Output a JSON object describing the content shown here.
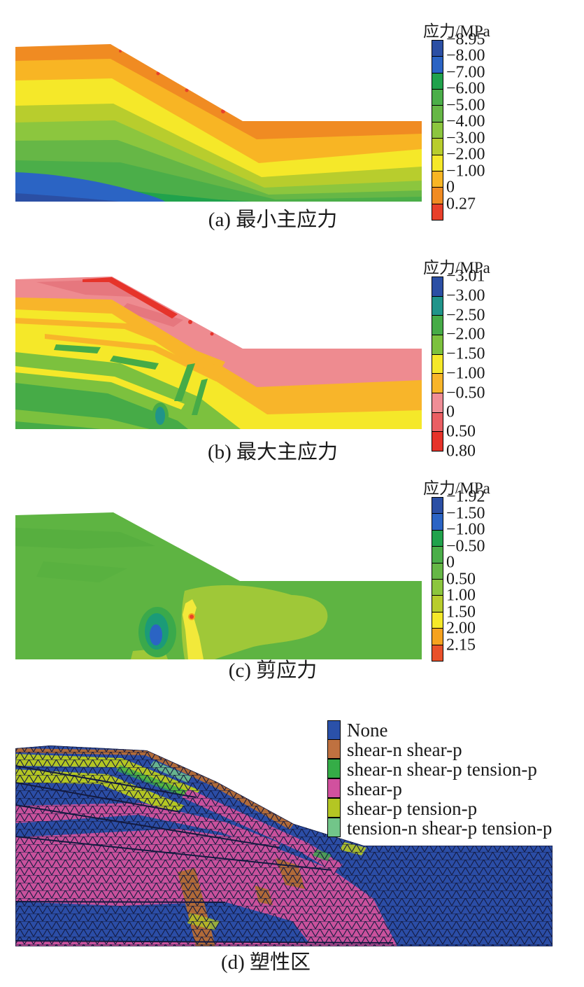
{
  "page": {
    "background": "#ffffff"
  },
  "panels": {
    "a": {
      "caption": "(a) 最小主应力",
      "legend_title": "应力/MPa",
      "colorbar": {
        "segments": [
          {
            "color": "#2b4fa4",
            "label": "−8.95"
          },
          {
            "color": "#2b64c4",
            "label": "−8.00"
          },
          {
            "color": "#21a24c",
            "label": "−7.00"
          },
          {
            "color": "#4bae49",
            "label": "−6.00"
          },
          {
            "color": "#66b746",
            "label": "−5.00"
          },
          {
            "color": "#8cc63e",
            "label": "−4.00"
          },
          {
            "color": "#b8cd2d",
            "label": "−3.00"
          },
          {
            "color": "#f5e829",
            "label": "−2.00"
          },
          {
            "color": "#f8b524",
            "label": "−1.00"
          },
          {
            "color": "#f08b22",
            "label": "0"
          },
          {
            "color": "#e8402a",
            "label": "0.27"
          }
        ],
        "bottom_label": null
      }
    },
    "b": {
      "caption": "(b) 最大主应力",
      "legend_title": "应力/MPa",
      "colorbar": {
        "segments": [
          {
            "color": "#2b4fa4",
            "label": "−3.01"
          },
          {
            "color": "#20948a",
            "label": "−3.00"
          },
          {
            "color": "#46ab47",
            "label": "−2.50"
          },
          {
            "color": "#7cc13e",
            "label": "−2.00"
          },
          {
            "color": "#f5e829",
            "label": "−1.50"
          },
          {
            "color": "#f8b52a",
            "label": "−1.00"
          },
          {
            "color": "#ef8e96",
            "label": "−0.50"
          },
          {
            "color": "#ea5f63",
            "label": "0"
          },
          {
            "color": "#e6332a",
            "label": "0.50"
          }
        ],
        "bottom_label": "0.80"
      }
    },
    "c": {
      "caption": "(c) 剪应力",
      "legend_title": "应力/MPa",
      "colorbar": {
        "segments": [
          {
            "color": "#2b4fa4",
            "label": "−1.92"
          },
          {
            "color": "#2b64c4",
            "label": "−1.50"
          },
          {
            "color": "#21a24c",
            "label": "−1.00"
          },
          {
            "color": "#4bae49",
            "label": "−0.50"
          },
          {
            "color": "#66b746",
            "label": "0"
          },
          {
            "color": "#8cc63e",
            "label": "0.50"
          },
          {
            "color": "#b8cd2d",
            "label": "1.00"
          },
          {
            "color": "#f5e829",
            "label": "1.50"
          },
          {
            "color": "#f6a21f",
            "label": "2.00"
          },
          {
            "color": "#e9512a",
            "label": "2.15"
          }
        ],
        "bottom_label": null
      }
    },
    "d": {
      "caption": "(d) 塑性区",
      "legend": {
        "items": [
          {
            "color": "#2b51a9",
            "label": "None"
          },
          {
            "color": "#bf7140",
            "label": "shear-n shear-p"
          },
          {
            "color": "#35ad47",
            "label": "shear-n shear-p tension-p"
          },
          {
            "color": "#d1519e",
            "label": "shear-p"
          },
          {
            "color": "#b4c623",
            "label": "shear-p tension-p"
          },
          {
            "color": "#72c589",
            "label": "tension-n shear-p tension-p"
          }
        ]
      }
    }
  },
  "chart_data": [
    {
      "type": "heatmap",
      "title": "(a) 最小主应力",
      "legend_title": "应力/MPa",
      "units": "MPa",
      "levels": [
        "−8.95",
        "−8.00",
        "−7.00",
        "−6.00",
        "−5.00",
        "−4.00",
        "−3.00",
        "−2.00",
        "−1.00",
        "0",
        "0.27"
      ],
      "colors": [
        "#2b4fa4",
        "#2b64c4",
        "#21a24c",
        "#4bae49",
        "#66b746",
        "#8cc63e",
        "#b8cd2d",
        "#f5e829",
        "#f8b524",
        "#f08b22",
        "#e8402a"
      ],
      "range": [
        -8.95,
        0.27
      ],
      "legend_position": "right",
      "description": "Contour map of minimum principal stress over a benched slope cross-section; compressive stress increases with depth from orange (≈0) at the surface to blue (≈−8.95 MPa) at the lower left."
    },
    {
      "type": "heatmap",
      "title": "(b) 最大主应力",
      "legend_title": "应力/MPa",
      "units": "MPa",
      "levels": [
        "−3.01",
        "−3.00",
        "−2.50",
        "−2.00",
        "−1.50",
        "−1.00",
        "−0.50",
        "0",
        "0.50",
        "0.80"
      ],
      "colors": [
        "#2b4fa4",
        "#20948a",
        "#46ab47",
        "#7cc13e",
        "#f5e829",
        "#f8b52a",
        "#ef8e96",
        "#ea5f63",
        "#e6332a"
      ],
      "range": [
        -3.01,
        0.8
      ],
      "legend_position": "right",
      "description": "Contour map of maximum principal stress; pink near-surface tension band, yellow/amber mid layers, greens and a small teal spot at depth."
    },
    {
      "type": "heatmap",
      "title": "(c) 剪应力",
      "legend_title": "应力/MPa",
      "units": "MPa",
      "levels": [
        "−1.92",
        "−1.50",
        "−1.00",
        "−0.50",
        "0",
        "0.50",
        "1.00",
        "1.50",
        "2.00",
        "2.15"
      ],
      "colors": [
        "#2b4fa4",
        "#2b64c4",
        "#21a24c",
        "#4bae49",
        "#66b746",
        "#8cc63e",
        "#b8cd2d",
        "#f5e829",
        "#f6a21f",
        "#e9512a"
      ],
      "range": [
        -1.92,
        2.15
      ],
      "legend_position": "right",
      "description": "Shear stress contour; nearly uniform green field with a localized blue/teal negative anomaly and a small yellow/red positive anomaly near the slope toe."
    },
    {
      "type": "heatmap",
      "title": "(d) 塑性区",
      "categories": [
        "None",
        "shear-n shear-p",
        "shear-n shear-p tension-p",
        "shear-p",
        "shear-p tension-p",
        "tension-n shear-p tension-p"
      ],
      "colors": [
        "#2b51a9",
        "#bf7140",
        "#35ad47",
        "#d1519e",
        "#b4c623",
        "#72c589"
      ],
      "legend_position": "right",
      "description": "Plastic-zone state plot on a triangular finite-element mesh: blue elastic (None) zones, large magenta shear-p region along bedding, yellow-green shear-p tension-p bands near the crest, brown shear-n shear-p streaks."
    }
  ]
}
